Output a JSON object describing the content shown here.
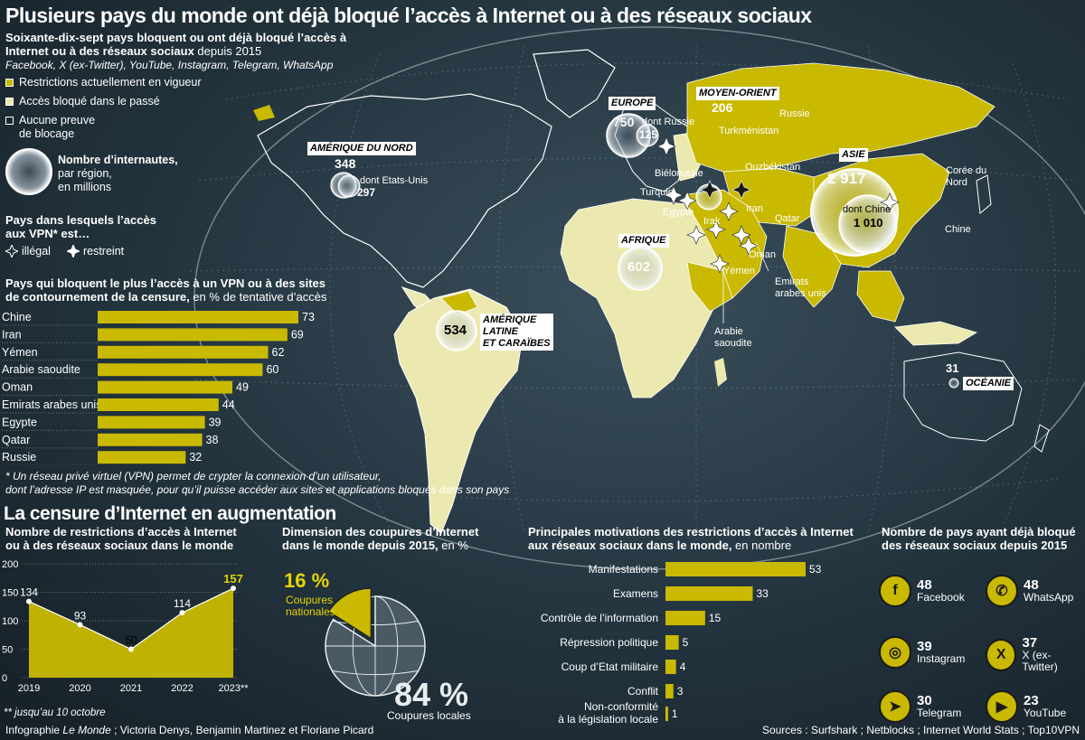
{
  "title": "Plusieurs pays du monde ont déjà bloqué l’accès à Internet ou à des réseaux sociaux",
  "subtitle": {
    "bold": "Soixante-dix-sept pays bloquent ou ont déjà bloqué l’accès à Internet ou à des réseaux sociaux",
    "normal": " depuis 2015",
    "italic": "Facebook, X (ex-Twitter), YouTube, Instagram, Telegram, WhatsApp"
  },
  "legend": {
    "restrictions_current": "Restrictions actuellement en vigueur",
    "blocked_past": "Accès bloqué dans le passé",
    "no_proof_1": "Aucune  preuve",
    "no_proof_2": "de blocage",
    "internet_users_1": "Nombre d’internautes,",
    "internet_users_2": "par région,",
    "internet_users_3": "en millions",
    "vpn_title_1": "Pays dans lesquels l’accès",
    "vpn_title_2": "aux VPN* est…",
    "vpn_illegal": "illégal",
    "vpn_restricted": "restreint"
  },
  "colors": {
    "current": "#c9b900",
    "past": "#ece9b0",
    "none": "#ffffff"
  },
  "regions": {
    "europe": {
      "name": "EUROPE",
      "value": "750",
      "sub_label": "dont Russie",
      "sub_value": "125"
    },
    "middle_east": {
      "name": "MOYEN-ORIENT",
      "value": "206"
    },
    "north_america": {
      "name": "AMÉRIQUE DU NORD",
      "value": "348",
      "sub_label": "dont Etats-Unis",
      "sub_value": "297"
    },
    "asia": {
      "name": "ASIE",
      "value": "2 917",
      "sub_label": "dont Chine",
      "sub_value": "1 010"
    },
    "africa": {
      "name": "AFRIQUE",
      "value": "602"
    },
    "latam": {
      "name_1": "AMÉRIQUE",
      "name_2": "LATINE",
      "name_3": "ET CARAÏBES",
      "value": "534"
    },
    "oceania": {
      "name": "OCÉANIE",
      "value": "31"
    }
  },
  "countries": {
    "russie": "Russie",
    "turkmenistan": "Turkménistan",
    "ouzbekistan": "Ouzbékistan",
    "bielorussie": "Biélorussie",
    "turquie": "Turquie",
    "egypte": "Egypte",
    "irak": "Irak",
    "iran": "Iran",
    "qatar": "Qatar",
    "oman": "Oman",
    "yemen": "Yémen",
    "emirats_1": "Emirats",
    "emirats_2": "arabes unis",
    "arabie_1": "Arabie",
    "arabie_2": "saoudite",
    "coree_1": "Corée du",
    "coree_2": "Nord",
    "chine": "Chine"
  },
  "vpn_chart": {
    "title_bold_1": "Pays qui bloquent le plus l’accès à un VPN ou à des sites",
    "title_bold_2": "de contournement de la censure,",
    "title_normal": " en % de tentative d’accès"
  },
  "footnote_1": "* Un réseau privé virtuel (VPN) permet de crypter la connexion d’un utilisateur,",
  "footnote_2": "dont l’adresse IP est masquée, pour qu’il puisse accéder aux sites et applications bloqués dans son pays",
  "section_title": "La censure d’Internet en augmentation",
  "line_chart_meta": {
    "title_1": "Nombre de restrictions d’accès à Internet",
    "title_2": "ou à des réseaux sociaux dans le monde",
    "note": "** jusqu’au 10 octobre"
  },
  "pie_meta": {
    "title_1": "Dimension des coupures d’Internet",
    "title_2": "dans le monde depuis 2015,",
    "title_unit": " en %",
    "national_value": "16 %",
    "national_label_1": "Coupures",
    "national_label_2": "nationales",
    "local_value": "84 %",
    "local_label": "Coupures locales"
  },
  "motives_meta": {
    "title_1": "Principales motivations des restrictions d’accès à Internet",
    "title_2": "aux réseaux sociaux dans le monde,",
    "title_unit": " en nombre"
  },
  "social": {
    "title_1": "Nombre de pays ayant déjà bloqué",
    "title_2": "des réseaux sociaux depuis 2015",
    "items": [
      {
        "name": "Facebook",
        "value": "48",
        "icon": "facebook-icon",
        "glyph": "f"
      },
      {
        "name": "WhatsApp",
        "value": "48",
        "icon": "whatsapp-icon",
        "glyph": "✆"
      },
      {
        "name": "Instagram",
        "value": "39",
        "icon": "instagram-icon",
        "glyph": "◎"
      },
      {
        "name": "X (ex-Twitter)",
        "value": "37",
        "icon": "x-icon",
        "glyph": "X"
      },
      {
        "name": "Telegram",
        "value": "30",
        "icon": "telegram-icon",
        "glyph": "➤"
      },
      {
        "name": "YouTube",
        "value": "23",
        "icon": "youtube-icon",
        "glyph": "▶"
      }
    ]
  },
  "credits": {
    "prefix": "Infographie ",
    "italic": "Le Monde",
    "suffix": " ; Victoria Denys, Benjamin Martinez et Floriane Picard"
  },
  "sources": "Sources : Surfshark ; Netblocks ; Internet World Stats ; Top10VPN",
  "chart_data": [
    {
      "type": "bar",
      "orientation": "horizontal",
      "categories": [
        "Chine",
        "Iran",
        "Yémen",
        "Arabie saoudite",
        "Oman",
        "Emirats arabes unis",
        "Egypte",
        "Qatar",
        "Russie"
      ],
      "values": [
        73,
        69,
        62,
        60,
        49,
        44,
        39,
        38,
        32
      ],
      "title": "Pays qui bloquent le plus l’accès à un VPN ou à des sites de contournement de la censure, en % de tentative d’accès",
      "grid": false
    },
    {
      "type": "area",
      "x": [
        "2019",
        "2020",
        "2021",
        "2022",
        "2023**"
      ],
      "values": [
        134,
        93,
        50,
        114,
        157
      ],
      "title": "Nombre de restrictions d’accès à Internet ou à des réseaux sociaux dans le monde",
      "yticks": [
        0,
        50,
        100,
        150,
        200
      ],
      "ylim": [
        0,
        200
      ],
      "grid": true
    },
    {
      "type": "pie",
      "categories": [
        "Coupures nationales",
        "Coupures locales"
      ],
      "values": [
        16,
        84
      ],
      "title": "Dimension des coupures d’Internet dans le monde depuis 2015, en %"
    },
    {
      "type": "bar",
      "orientation": "horizontal",
      "categories": [
        "Manifestations",
        "Examens",
        "Contrôle de l’information",
        "Répression politique",
        "Coup d’Etat militaire",
        "Conflit",
        "Non-conformité à la législation locale"
      ],
      "display_categories": [
        [
          "Manifestations"
        ],
        [
          "Examens"
        ],
        [
          "Contrôle de l’information"
        ],
        [
          "Répression politique"
        ],
        [
          "Coup d’Etat militaire"
        ],
        [
          "Conflit"
        ],
        [
          "Non-conformité",
          "à la législation locale"
        ]
      ],
      "values": [
        53,
        33,
        15,
        5,
        4,
        3,
        1
      ],
      "title": "Principales motivations des restrictions d’accès à Internet aux réseaux sociaux dans le monde, en nombre",
      "grid": false
    }
  ]
}
